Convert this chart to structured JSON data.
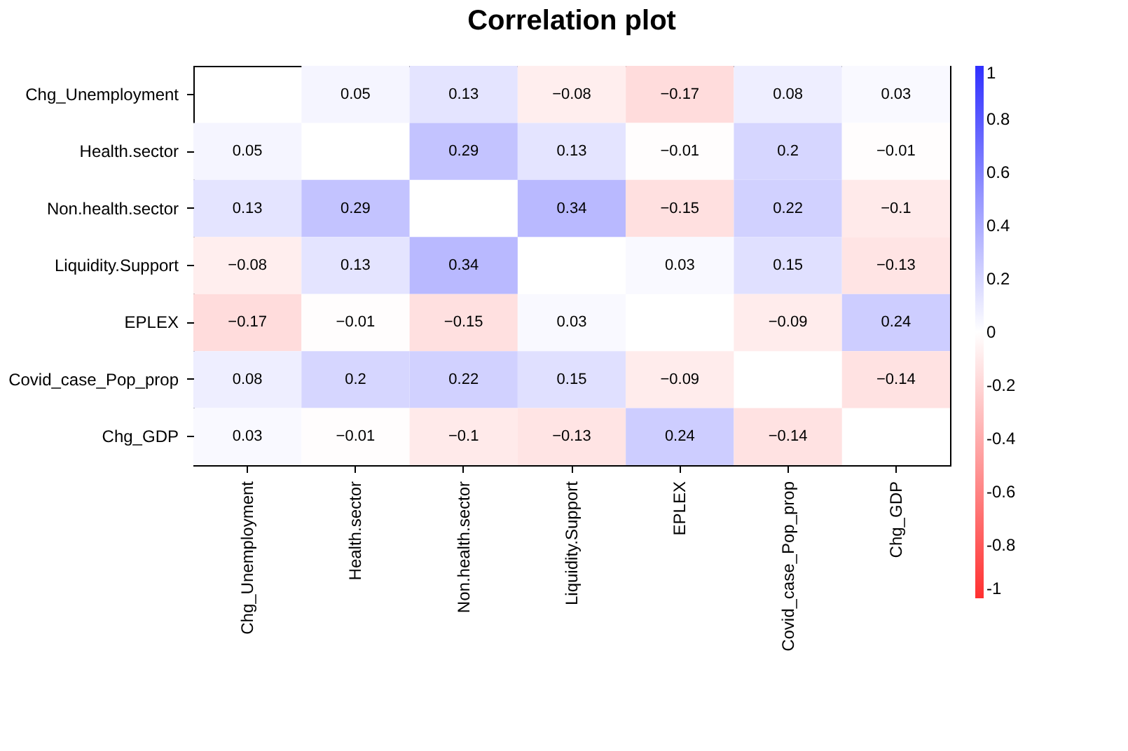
{
  "chart_data": {
    "type": "heatmap",
    "title": "Correlation plot",
    "categories": [
      "Chg_Unemployment",
      "Health.sector",
      "Non.health.sector",
      "Liquidity.Support",
      "EPLEX",
      "Covid_case_Pop_prop",
      "Chg_GDP"
    ],
    "y_categories": [
      "Chg_Unemployment",
      "Health.sector",
      "Non.health.sector",
      "Liquidity.Support",
      "EPLEX",
      "Covid_case_Pop_prop",
      "Chg_GDP"
    ],
    "cells": [
      [
        null,
        0.05,
        0.13,
        -0.08,
        -0.17,
        0.08,
        0.03
      ],
      [
        0.05,
        null,
        0.29,
        0.13,
        -0.01,
        0.2,
        -0.01
      ],
      [
        0.13,
        0.29,
        null,
        0.34,
        -0.15,
        0.22,
        -0.1
      ],
      [
        -0.08,
        0.13,
        0.34,
        null,
        0.03,
        0.15,
        -0.13
      ],
      [
        -0.17,
        -0.01,
        -0.15,
        0.03,
        null,
        -0.09,
        0.24
      ],
      [
        0.08,
        0.2,
        0.22,
        0.15,
        -0.09,
        null,
        -0.14
      ],
      [
        0.03,
        -0.01,
        -0.1,
        -0.13,
        0.24,
        -0.14,
        null
      ]
    ],
    "clim": [
      -1,
      1
    ],
    "cticks": [
      -1,
      -0.8,
      -0.6,
      -0.4,
      -0.2,
      0,
      0.2,
      0.4,
      0.6,
      0.8,
      1
    ],
    "data_labels": true,
    "grid": false
  }
}
